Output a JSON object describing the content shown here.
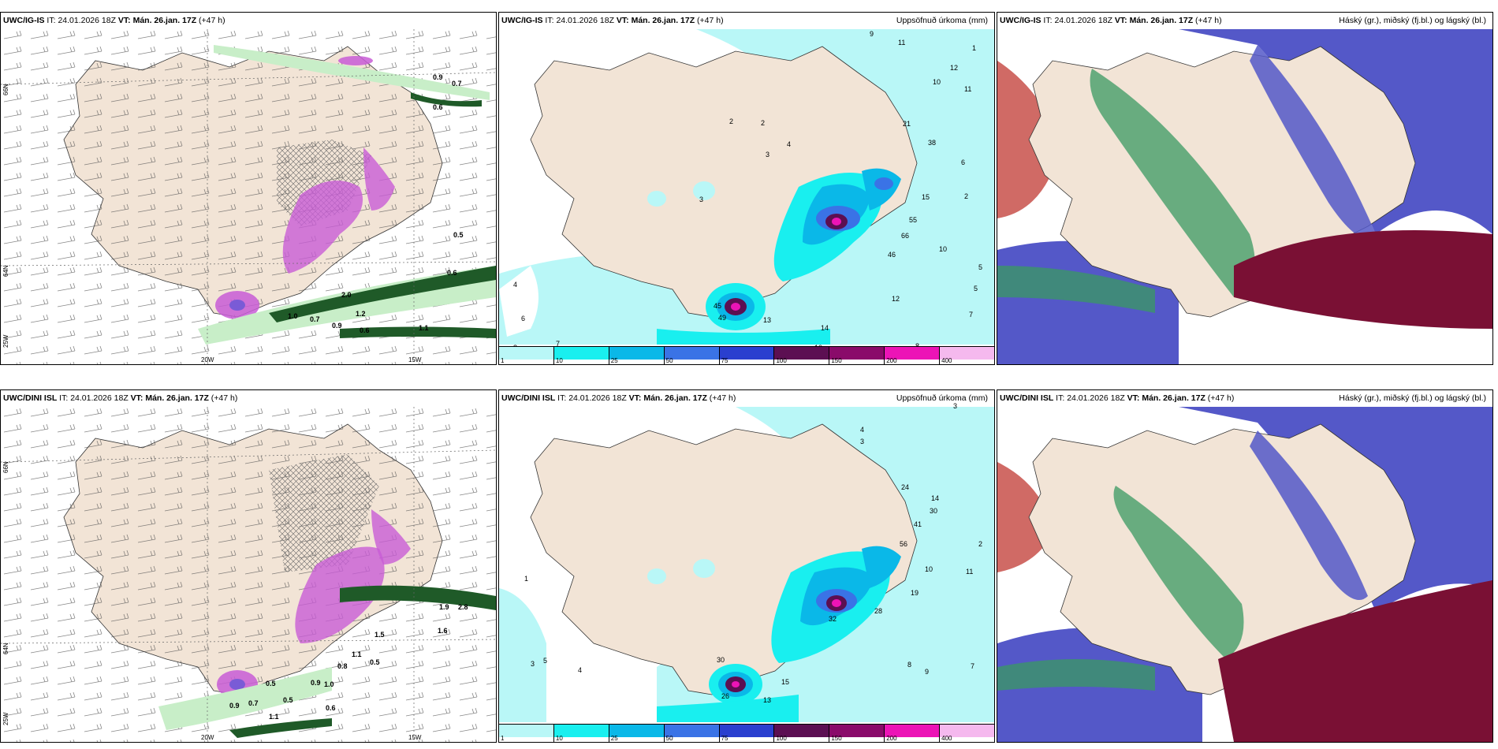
{
  "panels": [
    {
      "id": "r1c1",
      "model": "UWC/IG-IS",
      "it_label": "IT:",
      "it_value": "24.01.2026 18Z",
      "vt_label": "VT:",
      "vt_value": "Mán. 26.jan. 17Z",
      "lead": "(+47 h)",
      "right_title": "",
      "lon_labels": [
        "20W",
        "15W"
      ],
      "lat_labels": [
        "66N",
        "64N",
        "25W"
      ],
      "value_labels": [
        "0.9",
        "0.7",
        "0.6",
        "0.5",
        "1.0",
        "0.7",
        "0.6",
        "1.2",
        "0.9",
        "2.0",
        "1.1",
        "0.6"
      ]
    },
    {
      "id": "r1c2",
      "model": "UWC/IG-IS",
      "it_label": "IT:",
      "it_value": "24.01.2026 18Z",
      "vt_label": "VT:",
      "vt_value": "Mán. 26.jan. 17Z",
      "lead": "(+47 h)",
      "right_title": "Uppsöfnuð úrkoma (mm)",
      "value_labels": [
        "9",
        "11",
        "12",
        "11",
        "10",
        "4",
        "2",
        "2",
        "3",
        "21",
        "38",
        "6",
        "15",
        "55",
        "66",
        "46",
        "10",
        "45",
        "49",
        "13",
        "14",
        "12",
        "10",
        "8",
        "7",
        "5",
        "4",
        "6",
        "8",
        "7",
        "1",
        "2",
        "3",
        "5"
      ],
      "colorbar_labels": [
        "1",
        "10",
        "25",
        "50",
        "75",
        "100",
        "150",
        "200",
        "400",
        ""
      ]
    },
    {
      "id": "r1c3",
      "model": "UWC/IG-IS",
      "it_label": "IT:",
      "it_value": "24.01.2026 18Z",
      "vt_label": "VT:",
      "vt_value": "Mán. 26.jan. 17Z",
      "lead": "(+47 h)",
      "right_title": "Háský (gr.), miðský (fj.bl.) og lágský (bl.)"
    },
    {
      "id": "r2c1",
      "model": "UWC/DINI ISL",
      "it_label": "IT:",
      "it_value": "24.01.2026 18Z",
      "vt_label": "VT:",
      "vt_value": "Mán. 26.jan. 17Z",
      "lead": "(+47 h)",
      "right_title": "",
      "lon_labels": [
        "20W",
        "15W"
      ],
      "lat_labels": [
        "66N",
        "64N",
        "25W"
      ],
      "value_labels": [
        "1.9",
        "2.8",
        "1.6",
        "1.5",
        "1.1",
        "0.8",
        "0.5",
        "0.9",
        "1.0",
        "0.5",
        "0.7",
        "0.9",
        "0.5",
        "0.6",
        "1.1"
      ]
    },
    {
      "id": "r2c2",
      "model": "UWC/DINI ISL",
      "it_label": "IT:",
      "it_value": "24.01.2026 18Z",
      "vt_label": "VT:",
      "vt_value": "Mán. 26.jan. 17Z",
      "lead": "(+47 h)",
      "right_title": "Uppsöfnuð úrkoma (mm)",
      "value_labels": [
        "3",
        "4",
        "3",
        "24",
        "14",
        "30",
        "41",
        "56",
        "10",
        "11",
        "19",
        "28",
        "32",
        "30",
        "26",
        "13",
        "15",
        "8",
        "9",
        "7",
        "5",
        "4",
        "3",
        "1",
        "2"
      ],
      "colorbar_labels": [
        "1",
        "10",
        "25",
        "50",
        "75",
        "100",
        "150",
        "200",
        "400",
        ""
      ]
    },
    {
      "id": "r2c3",
      "model": "UWC/DINI ISL",
      "it_label": "IT:",
      "it_value": "24.01.2026 18Z",
      "vt_label": "VT:",
      "vt_value": "Mán. 26.jan. 17Z",
      "lead": "(+47 h)",
      "right_title": "Háský (gr.), miðský (fj.bl.) og lágský (bl.)"
    }
  ],
  "colors": {
    "land": "#f2e4d6",
    "sea_white": "#ffffff",
    "precip_1": "#b9f7f7",
    "precip_10": "#19efef",
    "precip_25": "#0ab8e8",
    "precip_50": "#3a73e6",
    "precip_75": "#2a3fcf",
    "precip_100": "#5c0f52",
    "precip_150": "#8a0b6a",
    "precip_200": "#ec14b6",
    "precip_400": "#f5b9ee",
    "snow_magenta": "#c85cd6",
    "rain_green_light": "#c8eec8",
    "rain_green_dark": "#1f5a28",
    "cloud_high_green": "#3a9a62",
    "cloud_mid_blue": "#5458c8",
    "cloud_low_maroon": "#7a1034",
    "cloud_red": "#c8504a"
  }
}
